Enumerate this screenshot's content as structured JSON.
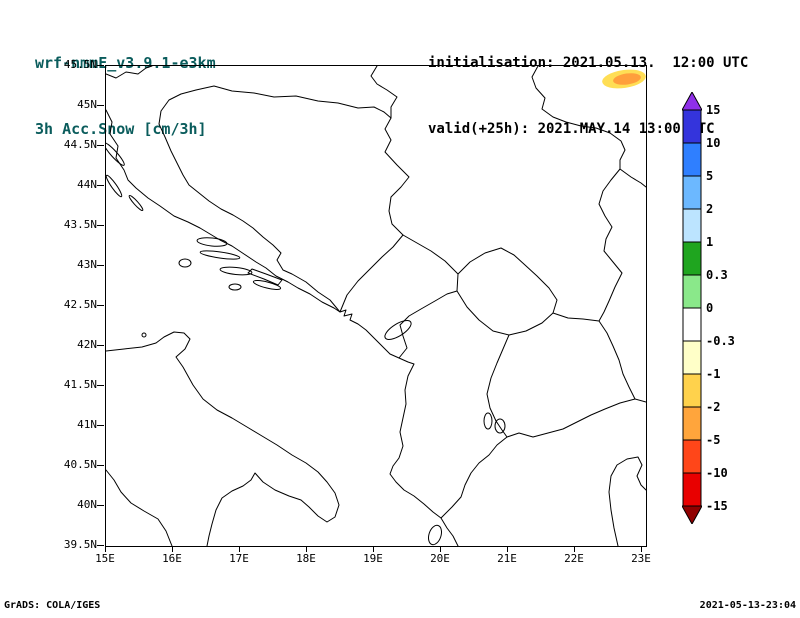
{
  "header": {
    "model_title": "wrf-nmmE_v3.9.1-e3km",
    "field_title": "3h Acc.Snow [cm/3h]",
    "initialisation": "initialisation: 2021.05.13.  12:00 UTC",
    "valid": "valid(+25h): 2021.MAY.14 13:00 UTC"
  },
  "footer": {
    "left": "GrADS: COLA/IGES",
    "right": "2021-05-13-23:04"
  },
  "chart_data": {
    "type": "heatmap",
    "title": "3h Acc.Snow [cm/3h]",
    "model": "wrf-nmmE_v3.9.1-e3km",
    "init_time": "2021.05.13. 12:00 UTC",
    "valid_time": "2021.MAY.14 13:00 UTC (+25h)",
    "x_axis": {
      "name": "longitude",
      "ticks": [
        "15E",
        "16E",
        "17E",
        "18E",
        "19E",
        "20E",
        "21E",
        "22E",
        "23E"
      ],
      "range": [
        15,
        23.1
      ]
    },
    "y_axis": {
      "name": "latitude",
      "ticks": [
        "45.5N",
        "45N",
        "44.5N",
        "44N",
        "43.5N",
        "43N",
        "42.5N",
        "42N",
        "41.5N",
        "41N",
        "40.5N",
        "40N",
        "39.5N"
      ],
      "range": [
        39.5,
        45.5
      ]
    },
    "colorbar": {
      "units": "cm/3h",
      "levels": [
        15,
        10,
        5,
        2,
        1,
        0.3,
        0,
        -0.3,
        -1,
        -2,
        -5,
        -10,
        -15
      ],
      "colors": [
        "#8f2fe8",
        "#3434dc",
        "#2f7fff",
        "#6cb8ff",
        "#bce4ff",
        "#1fa51f",
        "#8ae88a",
        "#ffffff",
        "#ffffc8",
        "#ffd24c",
        "#ffa53c",
        "#ff4619",
        "#e80000",
        "#900000"
      ],
      "position": "right"
    },
    "features": [
      {
        "name": "accumulation-area",
        "approx_lon": 22.7,
        "approx_lat": 45.35,
        "outer_color": "#ffde55",
        "inner_color": "#ff9f3c"
      }
    ],
    "grid": false,
    "map_extent": {
      "lon_min": 15,
      "lon_max": 23.1,
      "lat_min": 39.5,
      "lat_max": 45.5
    }
  }
}
